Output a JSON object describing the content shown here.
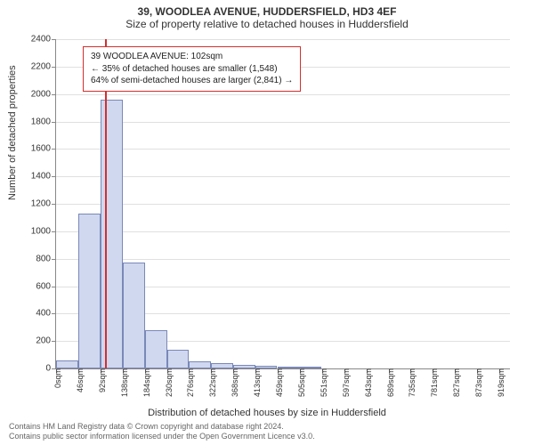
{
  "header": {
    "address": "39, WOODLEA AVENUE, HUDDERSFIELD, HD3 4EF",
    "subtitle": "Size of property relative to detached houses in Huddersfield"
  },
  "chart": {
    "type": "histogram",
    "ylabel": "Number of detached properties",
    "xlabel": "Distribution of detached houses by size in Huddersfield",
    "background_color": "#ffffff",
    "grid_color": "#e0e0e0",
    "axis_color": "#888888",
    "bar_fill": "#cfd8ef",
    "bar_border": "#7a88b8",
    "marker_color": "#d32f2f",
    "ylim": [
      0,
      2400
    ],
    "ytick_step": 200,
    "yticks": [
      0,
      200,
      400,
      600,
      800,
      1000,
      1200,
      1400,
      1600,
      1800,
      2000,
      2200,
      2400
    ],
    "xlim_sqm": [
      0,
      942
    ],
    "xtick_step_sqm": 46,
    "xticks": [
      "0sqm",
      "46sqm",
      "92sqm",
      "138sqm",
      "184sqm",
      "230sqm",
      "276sqm",
      "322sqm",
      "368sqm",
      "413sqm",
      "459sqm",
      "505sqm",
      "551sqm",
      "597sqm",
      "643sqm",
      "689sqm",
      "735sqm",
      "781sqm",
      "827sqm",
      "873sqm",
      "919sqm"
    ],
    "bin_width_sqm": 46,
    "bars": [
      {
        "x_start_sqm": 0,
        "count": 60
      },
      {
        "x_start_sqm": 46,
        "count": 1130
      },
      {
        "x_start_sqm": 92,
        "count": 1960
      },
      {
        "x_start_sqm": 138,
        "count": 770
      },
      {
        "x_start_sqm": 184,
        "count": 280
      },
      {
        "x_start_sqm": 230,
        "count": 135
      },
      {
        "x_start_sqm": 276,
        "count": 55
      },
      {
        "x_start_sqm": 322,
        "count": 38
      },
      {
        "x_start_sqm": 368,
        "count": 28
      },
      {
        "x_start_sqm": 413,
        "count": 22
      },
      {
        "x_start_sqm": 459,
        "count": 15
      },
      {
        "x_start_sqm": 505,
        "count": 8
      }
    ],
    "marker_sqm": 102,
    "title_fontsize": 12,
    "label_fontsize": 11,
    "tick_fontsize": 10
  },
  "infobox": {
    "line1": "39 WOODLEA AVENUE: 102sqm",
    "line2": "← 35% of detached houses are smaller (1,548)",
    "line3": "64% of semi-detached houses are larger (2,841) →",
    "border_color": "#d32f2f",
    "background_color": "#ffffff",
    "fontsize": 10
  },
  "footer": {
    "line1": "Contains HM Land Registry data © Crown copyright and database right 2024.",
    "line2": "Contains public sector information licensed under the Open Government Licence v3.0."
  }
}
